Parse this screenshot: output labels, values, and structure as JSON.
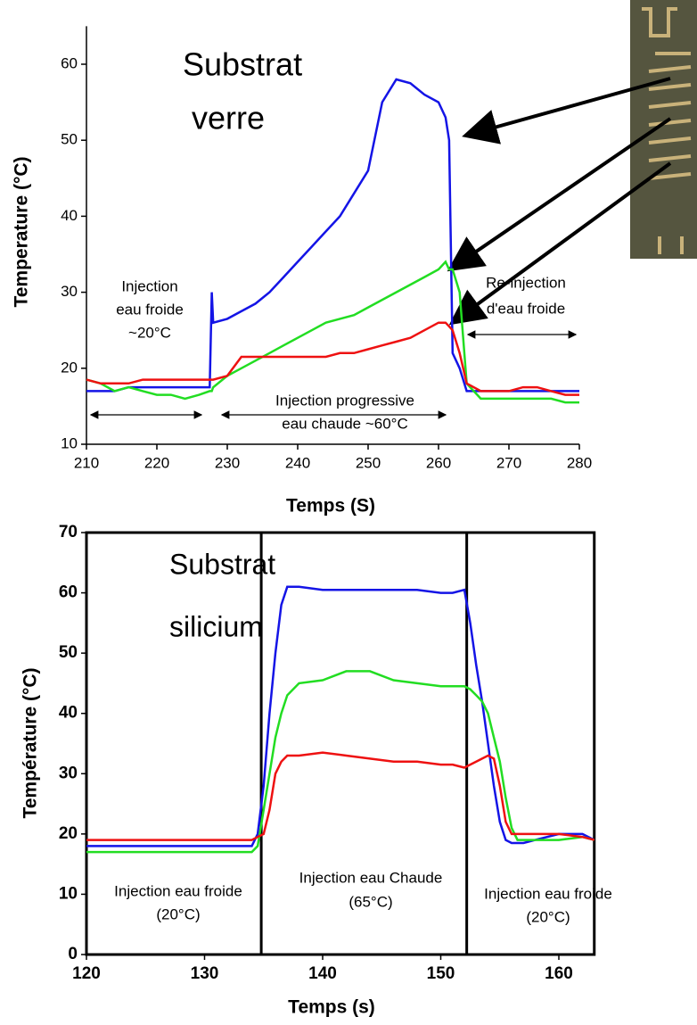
{
  "chart_data": [
    {
      "type": "line",
      "title": [
        "Substrat",
        "verre"
      ],
      "x_label": "Temps (S)",
      "y_label": "Temperature (°C)",
      "x": [
        210,
        212,
        214,
        216,
        218,
        220,
        222,
        224,
        226,
        227.5,
        227.8,
        228,
        230,
        232,
        234,
        236,
        238,
        240,
        242,
        244,
        246,
        248,
        250,
        252,
        254,
        256,
        258,
        260,
        261,
        261.5,
        262,
        263,
        264,
        266,
        268,
        270,
        272,
        274,
        276,
        278,
        280
      ],
      "series": [
        {
          "color": "#1414e6",
          "values": [
            17,
            17,
            17,
            17.5,
            17.5,
            17.5,
            17.5,
            17.5,
            17.5,
            17.5,
            30,
            26,
            26.5,
            27.5,
            28.5,
            30,
            32,
            34,
            36,
            38,
            40,
            43,
            46,
            55,
            58,
            57.5,
            56,
            55,
            53,
            50,
            22,
            20,
            17,
            17,
            17,
            17,
            17,
            17,
            17,
            17,
            17
          ]
        },
        {
          "color": "#22dd22",
          "values": [
            18.5,
            18,
            17,
            17.5,
            17,
            16.5,
            16.5,
            16,
            16.5,
            17,
            17,
            17.5,
            19,
            20,
            21,
            22,
            23,
            24,
            25,
            26,
            26.5,
            27,
            28,
            29,
            30,
            31,
            32,
            33,
            34,
            33,
            33,
            30,
            18,
            16,
            16,
            16,
            16,
            16,
            16,
            15.5,
            15.5
          ]
        },
        {
          "color": "#ee1111",
          "values": [
            18.5,
            18,
            18,
            18,
            18.5,
            18.5,
            18.5,
            18.5,
            18.5,
            18.5,
            18.5,
            18.5,
            19,
            21.5,
            21.5,
            21.5,
            21.5,
            21.5,
            21.5,
            21.5,
            22,
            22,
            22.5,
            23,
            23.5,
            24,
            25,
            26,
            26,
            25.5,
            25,
            22,
            18,
            17,
            17,
            17,
            17.5,
            17.5,
            17,
            16.5,
            16.5
          ]
        }
      ],
      "xlim": [
        210,
        280
      ],
      "ylim": [
        10,
        65
      ],
      "xticks": [
        210,
        220,
        230,
        240,
        250,
        260,
        270,
        280
      ],
      "yticks": [
        10,
        20,
        30,
        40,
        50,
        60
      ],
      "annotations": [
        {
          "lines": [
            "Injection",
            "eau froide",
            "~20°C"
          ]
        },
        {
          "lines": [
            "Injection progressive",
            "eau chaude ~60°C"
          ]
        },
        {
          "lines": [
            "Re-injection",
            "d'eau froide"
          ]
        }
      ]
    },
    {
      "type": "line",
      "title": [
        "Substrat",
        "silicium"
      ],
      "x_label": "Temps (s)",
      "y_label": "Température (°C)",
      "x": [
        120,
        122,
        124,
        126,
        128,
        130,
        132,
        134,
        134.5,
        135,
        135.5,
        136,
        136.5,
        137,
        138,
        140,
        142,
        144,
        146,
        148,
        150,
        151,
        152,
        152.5,
        153,
        153.5,
        154,
        154.5,
        155,
        155.5,
        156,
        156.5,
        157,
        158,
        160,
        162,
        163
      ],
      "series": [
        {
          "color": "#1414e6",
          "values": [
            18,
            18,
            18,
            18,
            18,
            18,
            18,
            18,
            20,
            28,
            40,
            50,
            58,
            61,
            61,
            60.5,
            60.5,
            60.5,
            60.5,
            60.5,
            60,
            60,
            60.5,
            55,
            48,
            42,
            35,
            28,
            22,
            19,
            18.5,
            18.5,
            18.5,
            19,
            20,
            20,
            19
          ]
        },
        {
          "color": "#22dd22",
          "values": [
            17,
            17,
            17,
            17,
            17,
            17,
            17,
            17,
            18,
            24,
            30,
            36,
            40,
            43,
            45,
            45.5,
            47,
            47,
            45.5,
            45,
            44.5,
            44.5,
            44.5,
            44,
            43,
            42,
            40,
            36,
            32,
            26,
            21,
            19,
            19,
            19,
            19,
            19.5,
            19
          ]
        },
        {
          "color": "#ee1111",
          "values": [
            19,
            19,
            19,
            19,
            19,
            19,
            19,
            19,
            19.5,
            20,
            24,
            30,
            32,
            33,
            33,
            33.5,
            33,
            32.5,
            32,
            32,
            31.5,
            31.5,
            31,
            31.5,
            32,
            32.5,
            33,
            32.5,
            28,
            22,
            20,
            20,
            20,
            20,
            20,
            19.5,
            19
          ]
        }
      ],
      "xlim": [
        120,
        163
      ],
      "ylim": [
        0,
        70
      ],
      "xticks": [
        120,
        130,
        140,
        150,
        160
      ],
      "yticks": [
        0,
        10,
        20,
        30,
        40,
        50,
        60,
        70
      ],
      "dividers": [
        134.8,
        152.2
      ],
      "annotations": [
        {
          "lines": [
            "Injection eau froide",
            "(20°C)"
          ]
        },
        {
          "lines": [
            "Injection eau Chaude",
            "(65°C)"
          ]
        },
        {
          "lines": [
            "Injection eau froide",
            "(20°C)"
          ]
        }
      ]
    }
  ]
}
